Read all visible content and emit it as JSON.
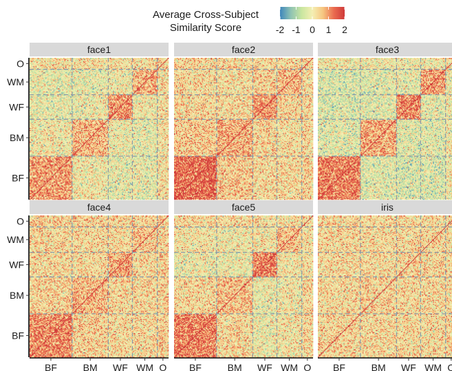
{
  "chart_data": {
    "type": "heatmap",
    "legend": {
      "title_line1": "Average Cross-Subject",
      "title_line2": "Similarity Score",
      "ticks": [
        "-2",
        "-1",
        "0",
        "1",
        "2"
      ],
      "range": [
        -2,
        2
      ],
      "colors": [
        "#3f86bc",
        "#8fc3b3",
        "#c9e6a0",
        "#f4efb3",
        "#f6c580",
        "#ea6b4f",
        "#cf3a3a"
      ],
      "placement": "top"
    },
    "categories": [
      "BF",
      "BM",
      "WF",
      "WM",
      "O"
    ],
    "group_sizes": [
      53,
      45,
      30,
      31,
      14
    ],
    "panels": [
      {
        "name": "face1",
        "block_means": [
          [
            0.9,
            0.0,
            -0.2,
            -0.2,
            0.2
          ],
          [
            0.0,
            0.7,
            -0.1,
            -0.2,
            0.2
          ],
          [
            -0.2,
            -0.1,
            1.0,
            0.0,
            0.2
          ],
          [
            -0.2,
            -0.2,
            0.0,
            0.7,
            0.2
          ],
          [
            0.2,
            0.2,
            0.2,
            0.2,
            0.3
          ]
        ]
      },
      {
        "name": "face2",
        "block_means": [
          [
            1.4,
            0.5,
            0.3,
            0.3,
            0.4
          ],
          [
            0.5,
            0.8,
            0.3,
            0.2,
            0.3
          ],
          [
            0.3,
            0.3,
            1.0,
            0.4,
            0.3
          ],
          [
            0.3,
            0.2,
            0.4,
            0.7,
            0.3
          ],
          [
            0.4,
            0.3,
            0.3,
            0.3,
            0.4
          ]
        ]
      },
      {
        "name": "face3",
        "block_means": [
          [
            1.2,
            -0.3,
            -0.4,
            -0.4,
            0.0
          ],
          [
            -0.3,
            0.8,
            -0.3,
            -0.3,
            0.0
          ],
          [
            -0.4,
            -0.3,
            1.1,
            -0.2,
            0.0
          ],
          [
            -0.4,
            -0.3,
            -0.2,
            0.9,
            0.0
          ],
          [
            0.0,
            0.0,
            0.0,
            0.0,
            0.2
          ]
        ]
      },
      {
        "name": "face4",
        "block_means": [
          [
            1.1,
            0.4,
            0.3,
            0.3,
            0.4
          ],
          [
            0.4,
            0.7,
            0.3,
            0.3,
            0.4
          ],
          [
            0.3,
            0.3,
            0.8,
            0.3,
            0.4
          ],
          [
            0.3,
            0.3,
            0.3,
            0.6,
            0.4
          ],
          [
            0.4,
            0.4,
            0.4,
            0.4,
            0.4
          ]
        ]
      },
      {
        "name": "face5",
        "block_means": [
          [
            1.2,
            0.3,
            -0.1,
            0.1,
            0.3
          ],
          [
            0.3,
            0.6,
            -0.1,
            0.0,
            0.3
          ],
          [
            -0.1,
            -0.1,
            1.2,
            0.1,
            0.2
          ],
          [
            0.1,
            0.0,
            0.1,
            0.6,
            0.2
          ],
          [
            0.3,
            0.3,
            0.2,
            0.2,
            0.3
          ]
        ]
      },
      {
        "name": "iris",
        "block_means": [
          [
            0.35,
            0.3,
            0.3,
            0.3,
            0.3
          ],
          [
            0.3,
            0.35,
            0.3,
            0.3,
            0.3
          ],
          [
            0.3,
            0.3,
            0.35,
            0.3,
            0.3
          ],
          [
            0.3,
            0.3,
            0.3,
            0.35,
            0.3
          ],
          [
            0.3,
            0.3,
            0.3,
            0.3,
            0.35
          ]
        ]
      }
    ],
    "x_tick_labels": [
      "BF",
      "BM",
      "WF",
      "WM",
      "O"
    ],
    "y_tick_labels": [
      "BF",
      "BM",
      "WF",
      "WM",
      "O"
    ],
    "grid": false
  }
}
